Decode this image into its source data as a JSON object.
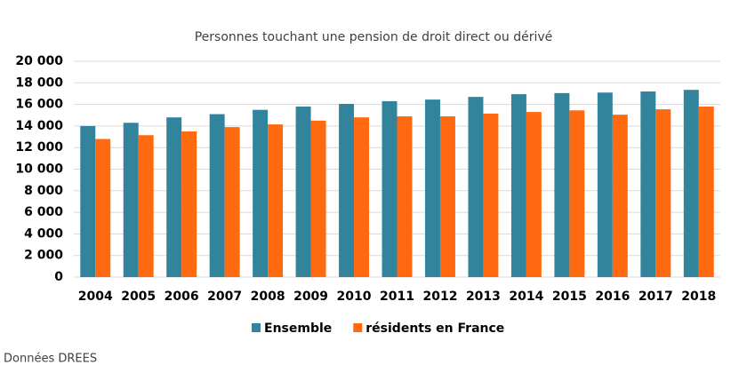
{
  "chart_data": {
    "type": "bar",
    "title": "Personnes touchant une pension de droit direct ou dérivé",
    "categories": [
      "2004",
      "2005",
      "2006",
      "2007",
      "2008",
      "2009",
      "2010",
      "2011",
      "2012",
      "2013",
      "2014",
      "2015",
      "2016",
      "2017",
      "2018"
    ],
    "series": [
      {
        "name": "Ensemble",
        "color": "#31849b",
        "values": [
          14000,
          14300,
          14800,
          15100,
          15500,
          15800,
          16050,
          16300,
          16450,
          16700,
          16950,
          17050,
          17100,
          17200,
          17350
        ]
      },
      {
        "name": "résidents en France",
        "color": "#ff6a10",
        "values": [
          12800,
          13150,
          13500,
          13900,
          14150,
          14500,
          14800,
          14900,
          14900,
          15150,
          15300,
          15450,
          15050,
          15550,
          15800
        ]
      }
    ],
    "ylim": [
      0,
      20000
    ],
    "yticks": [
      0,
      {
        "value": 2000,
        "label": "2 000"
      },
      {
        "value": 4000,
        "label": "4 000"
      },
      {
        "value": 6000,
        "label": "6 000"
      },
      {
        "value": 8000,
        "label": "8 000"
      },
      {
        "value": 10000,
        "label": "10 000"
      },
      {
        "value": 12000,
        "label": "12 000"
      },
      {
        "value": 14000,
        "label": "14 000"
      },
      {
        "value": 16000,
        "label": "16 000"
      },
      {
        "value": 18000,
        "label": "18 000"
      },
      {
        "value": 20000,
        "label": "20 000"
      }
    ],
    "grid": true,
    "legend": "bottom",
    "source": "Données  DREES"
  }
}
